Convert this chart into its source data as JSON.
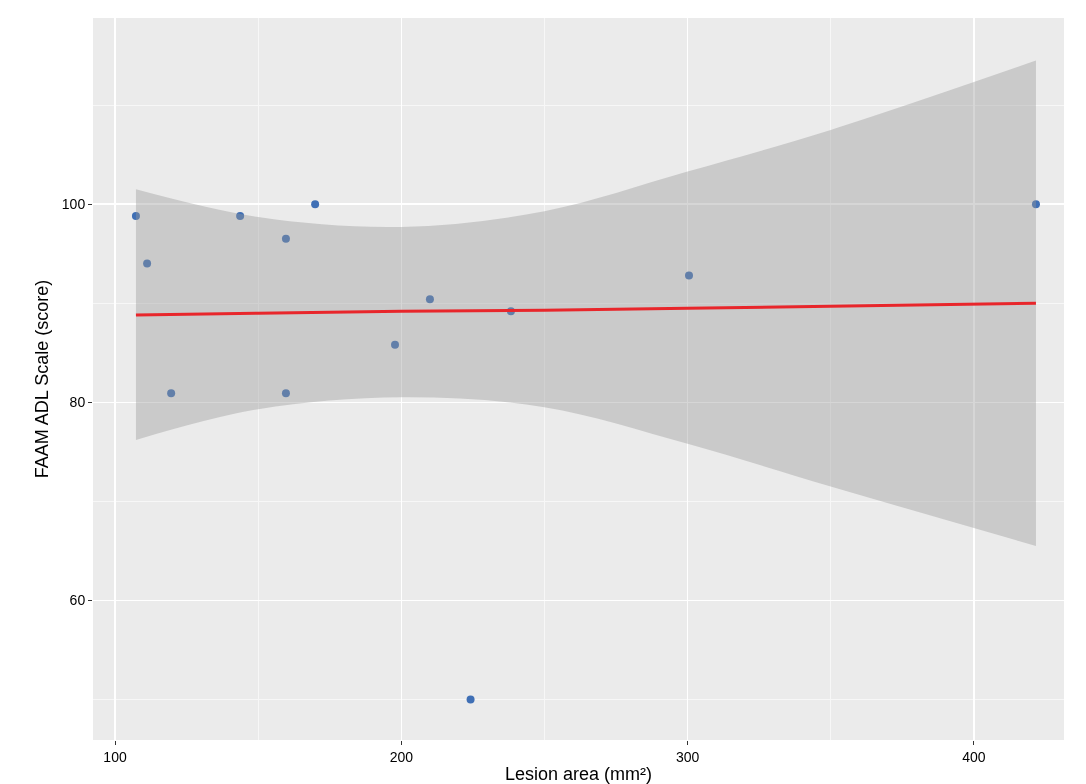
{
  "chart_data": {
    "type": "scatter",
    "xlabel": "Lesion area (mm²)",
    "ylabel": "FAAM ADL Scale (score)",
    "xlim": [
      92.3,
      431.5
    ],
    "xticks": [
      100,
      200,
      300,
      400
    ],
    "ylim": [
      45.9,
      118.8
    ],
    "yticks": [
      60,
      80,
      100
    ],
    "grid": true,
    "series": [
      {
        "marker": "circle",
        "color": "#3f6fb5",
        "x": [
          107.3,
          111.2,
          119.6,
          143.7,
          159.7,
          159.7,
          169.9,
          197.8,
          210.0,
          238.3,
          300.5,
          421.7,
          224.2
        ],
        "values": [
          98.8,
          94.0,
          80.9,
          98.8,
          96.5,
          80.9,
          100.0,
          85.8,
          90.4,
          89.2,
          92.8,
          100.0,
          50.0
        ]
      },
      {
        "type": "line",
        "color": "#e8262b",
        "line_style": "solid",
        "x": [
          107.3,
          150,
          200,
          250,
          300,
          350,
          421.7
        ],
        "values": [
          88.8,
          89.0,
          89.2,
          89.3,
          89.5,
          89.7,
          90.0
        ],
        "lower": [
          76.2,
          79.3,
          80.5,
          79.5,
          75.8,
          71.5,
          65.5
        ],
        "upper": [
          101.5,
          98.7,
          97.7,
          99.3,
          103.3,
          107.5,
          114.5
        ]
      }
    ]
  }
}
